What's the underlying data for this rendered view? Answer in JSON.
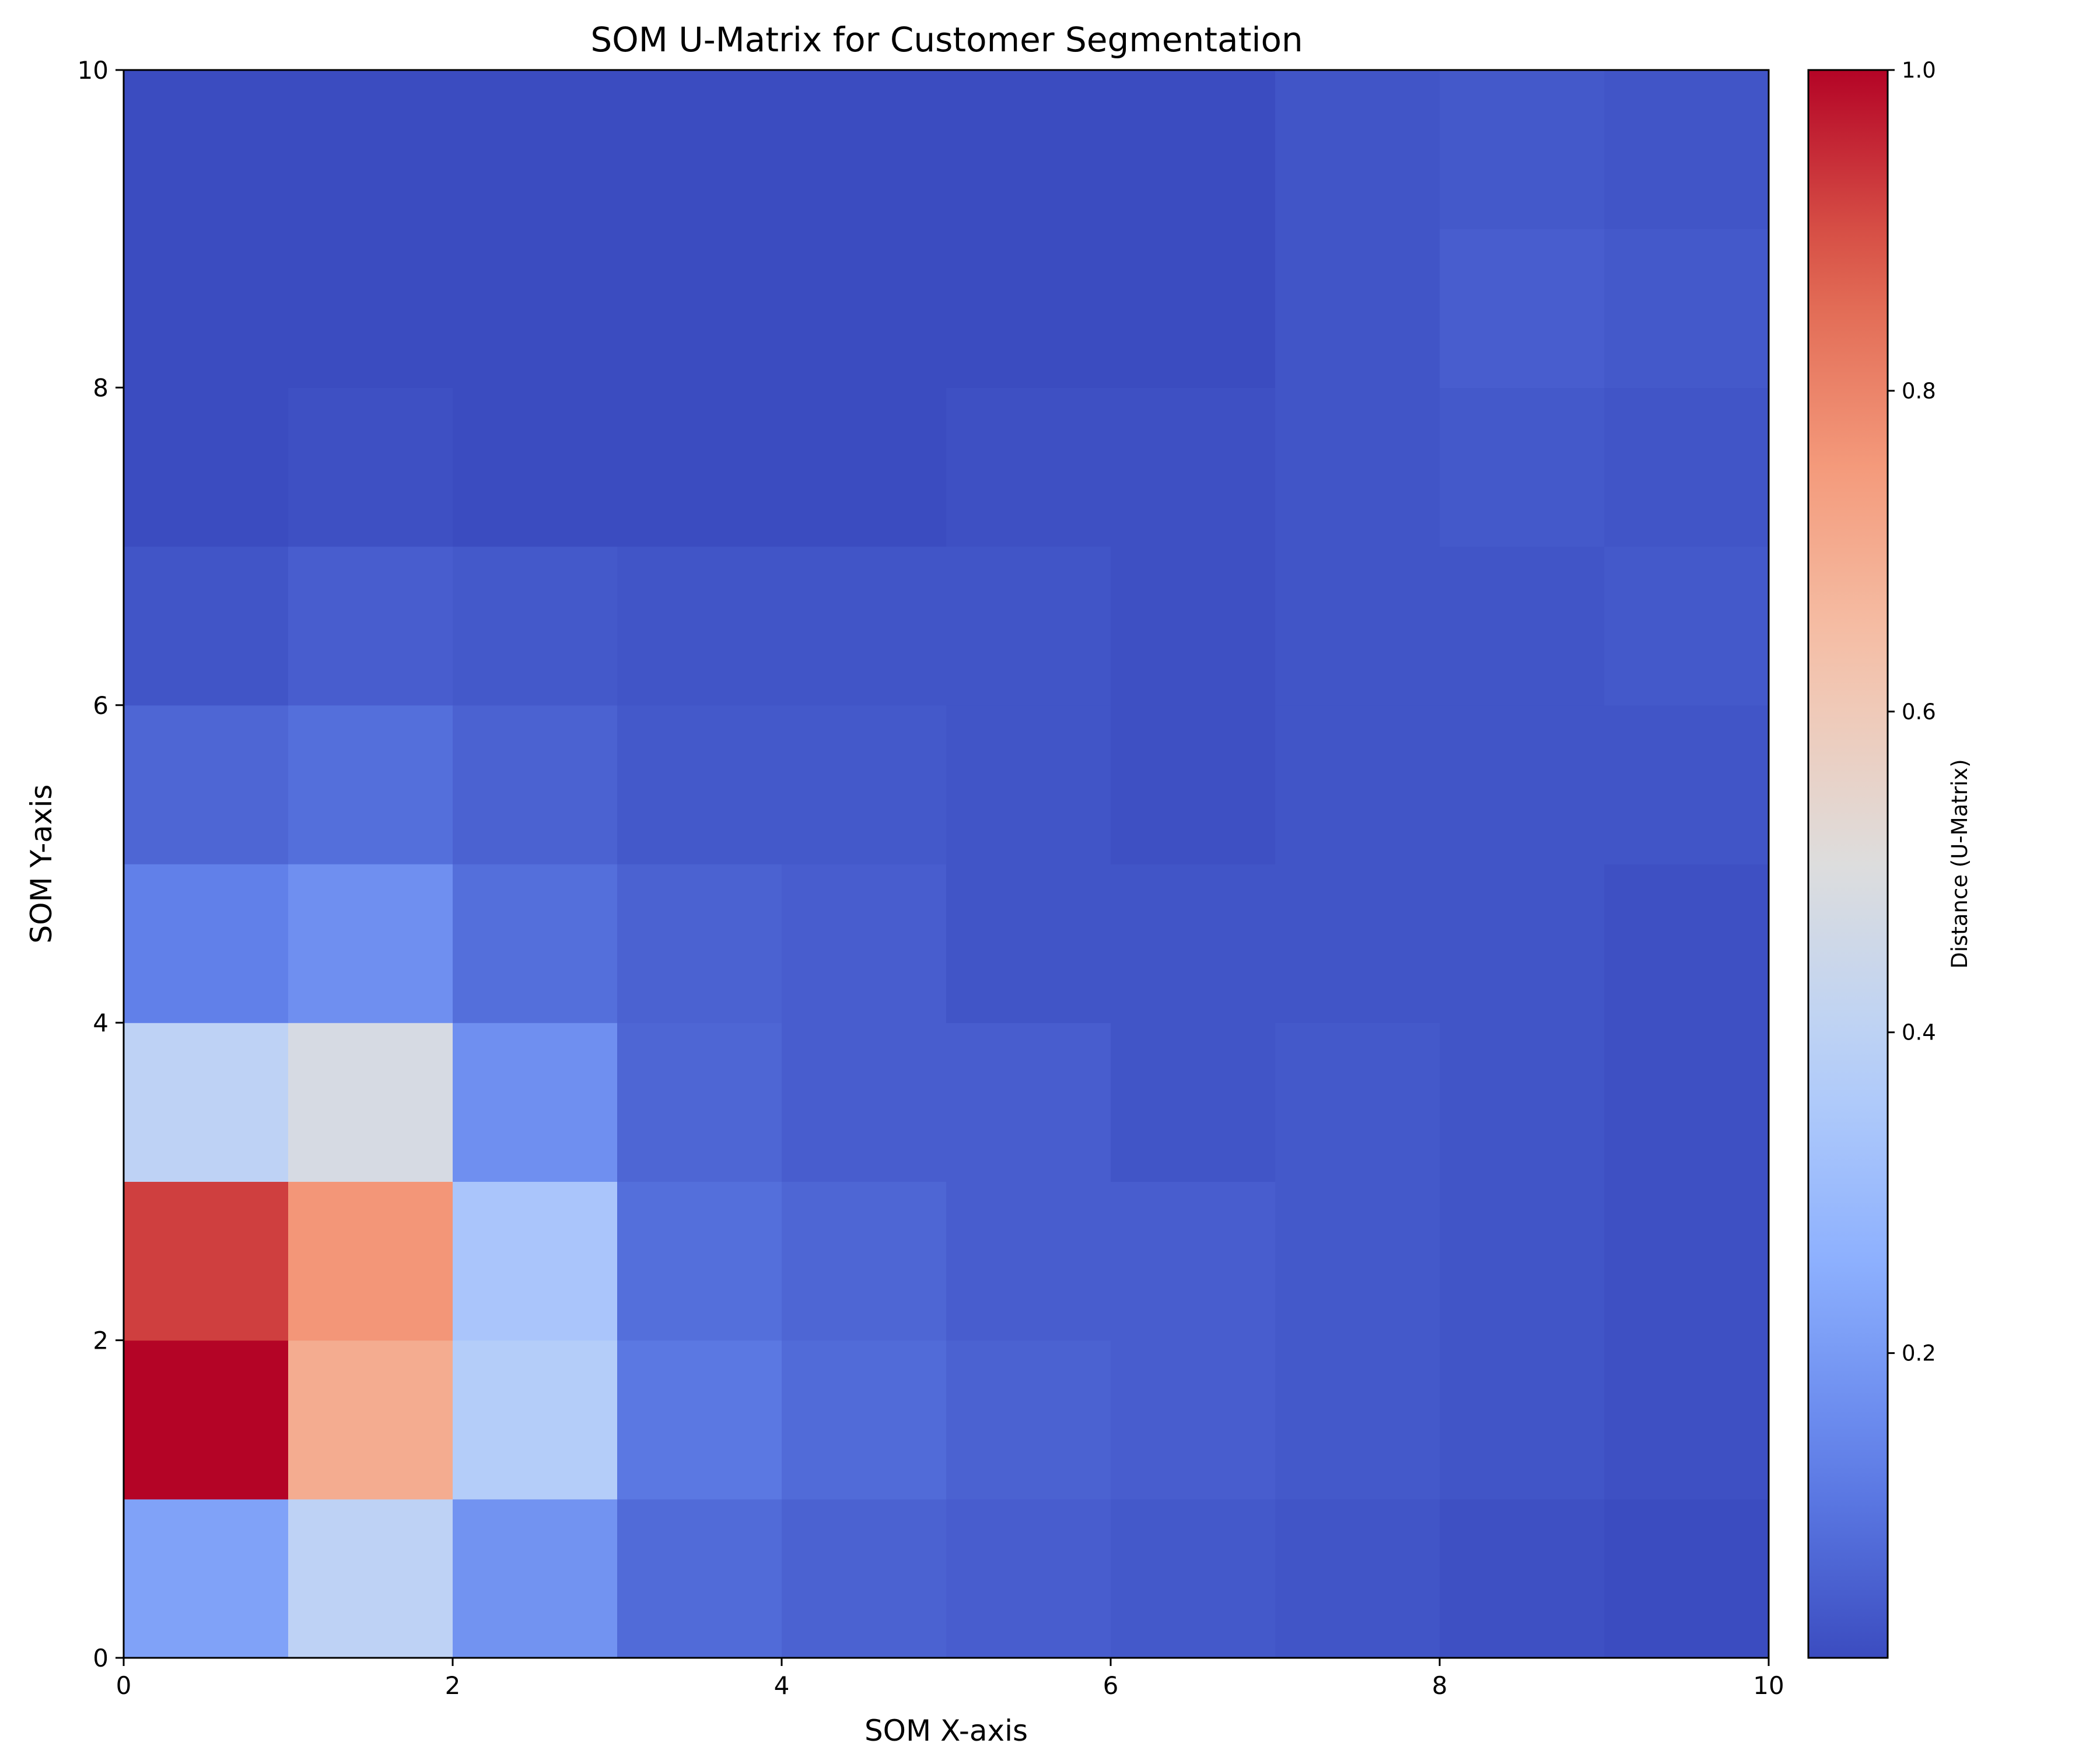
{
  "chart_data": {
    "type": "heatmap",
    "title": "SOM U-Matrix for Customer Segmentation",
    "xlabel": "SOM X-axis",
    "ylabel": "SOM Y-axis",
    "xlim": [
      0,
      10
    ],
    "ylim": [
      0,
      10
    ],
    "x_ticks": [
      "0",
      "2",
      "4",
      "6",
      "8",
      "10"
    ],
    "y_ticks": [
      "0",
      "2",
      "4",
      "6",
      "8",
      "10"
    ],
    "colormap": "coolwarm",
    "colorbar": {
      "label": "Distance (U-Matrix)",
      "vmin": 0.01,
      "vmax": 1.0,
      "ticks": [
        "0.2",
        "0.4",
        "0.6",
        "0.8",
        "1.0"
      ],
      "tick_values": [
        0.2,
        0.4,
        0.6,
        0.8,
        1.0
      ]
    },
    "grid": false,
    "rows_from_bottom": [
      [
        0.22,
        0.4,
        0.18,
        0.08,
        0.06,
        0.05,
        0.04,
        0.03,
        0.02,
        0.01
      ],
      [
        1.0,
        0.7,
        0.37,
        0.11,
        0.08,
        0.06,
        0.05,
        0.04,
        0.03,
        0.02
      ],
      [
        0.92,
        0.76,
        0.34,
        0.09,
        0.07,
        0.05,
        0.05,
        0.04,
        0.03,
        0.02
      ],
      [
        0.4,
        0.48,
        0.17,
        0.07,
        0.05,
        0.05,
        0.03,
        0.04,
        0.03,
        0.02
      ],
      [
        0.13,
        0.17,
        0.09,
        0.06,
        0.05,
        0.03,
        0.03,
        0.03,
        0.03,
        0.02
      ],
      [
        0.07,
        0.09,
        0.06,
        0.04,
        0.04,
        0.03,
        0.02,
        0.03,
        0.03,
        0.03
      ],
      [
        0.03,
        0.05,
        0.04,
        0.03,
        0.03,
        0.03,
        0.02,
        0.03,
        0.03,
        0.04
      ],
      [
        0.01,
        0.02,
        0.01,
        0.01,
        0.01,
        0.02,
        0.02,
        0.03,
        0.04,
        0.03
      ],
      [
        0.01,
        0.01,
        0.01,
        0.01,
        0.01,
        0.01,
        0.01,
        0.03,
        0.05,
        0.04
      ],
      [
        0.01,
        0.01,
        0.01,
        0.01,
        0.01,
        0.01,
        0.01,
        0.03,
        0.04,
        0.03
      ]
    ]
  }
}
